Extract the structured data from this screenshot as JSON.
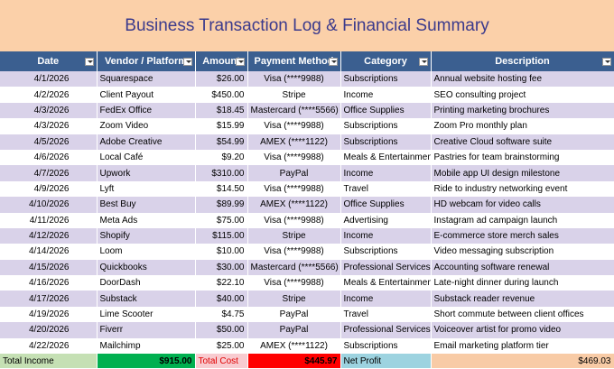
{
  "header": {
    "title": "Business Transaction Log & Financial Summary"
  },
  "table": {
    "columns": [
      "Date",
      "Vendor / Platform",
      "Amount",
      "Payment Method",
      "Category",
      "Description"
    ],
    "rows": [
      [
        "4/1/2026",
        "Squarespace",
        "$26.00",
        "Visa (****9988)",
        "Subscriptions",
        "Annual website hosting fee"
      ],
      [
        "4/2/2026",
        "Client Payout",
        "$450.00",
        "Stripe",
        "Income",
        "SEO consulting project"
      ],
      [
        "4/3/2026",
        "FedEx Office",
        "$18.45",
        "Mastercard (****5566)",
        "Office Supplies",
        "Printing marketing brochures"
      ],
      [
        "4/3/2026",
        "Zoom Video",
        "$15.99",
        "Visa (****9988)",
        "Subscriptions",
        "Zoom Pro monthly plan"
      ],
      [
        "4/5/2026",
        "Adobe Creative",
        "$54.99",
        "AMEX (****1122)",
        "Subscriptions",
        "Creative Cloud software suite"
      ],
      [
        "4/6/2026",
        "Local Café",
        "$9.20",
        "Visa (****9988)",
        "Meals & Entertainment",
        "Pastries for team brainstorming"
      ],
      [
        "4/7/2026",
        "Upwork",
        "$310.00",
        "PayPal",
        "Income",
        "Mobile app UI design milestone"
      ],
      [
        "4/9/2026",
        "Lyft",
        "$14.50",
        "Visa (****9988)",
        "Travel",
        "Ride to industry networking event"
      ],
      [
        "4/10/2026",
        "Best Buy",
        "$89.99",
        "AMEX (****1122)",
        "Office Supplies",
        "HD webcam for video calls"
      ],
      [
        "4/11/2026",
        "Meta Ads",
        "$75.00",
        "Visa (****9988)",
        "Advertising",
        "Instagram ad campaign launch"
      ],
      [
        "4/12/2026",
        "Shopify",
        "$115.00",
        "Stripe",
        "Income",
        "E-commerce store merch sales"
      ],
      [
        "4/14/2026",
        "Loom",
        "$10.00",
        "Visa (****9988)",
        "Subscriptions",
        "Video messaging subscription"
      ],
      [
        "4/15/2026",
        "Quickbooks",
        "$30.00",
        "Mastercard (****5566)",
        "Professional Services",
        "Accounting software renewal"
      ],
      [
        "4/16/2026",
        "DoorDash",
        "$22.10",
        "Visa (****9988)",
        "Meals & Entertainment",
        "Late-night dinner during launch"
      ],
      [
        "4/17/2026",
        "Substack",
        "$40.00",
        "Stripe",
        "Income",
        "Substack reader revenue"
      ],
      [
        "4/19/2026",
        "Lime Scooter",
        "$4.75",
        "PayPal",
        "Travel",
        "Short commute between client offices"
      ],
      [
        "4/20/2026",
        "Fiverr",
        "$50.00",
        "PayPal",
        "Professional Services",
        "Voiceover artist for promo video"
      ],
      [
        "4/22/2026",
        "Mailchimp",
        "$25.00",
        "AMEX (****1122)",
        "Subscriptions",
        "Email marketing platform tier"
      ]
    ]
  },
  "footer": {
    "total_income_label": "Total Income",
    "total_income": "$915.00",
    "total_cost_label": "Total Cost",
    "total_cost": "$445.97",
    "net_profit_label": "Net Profit",
    "net_profit": "$469.03"
  }
}
